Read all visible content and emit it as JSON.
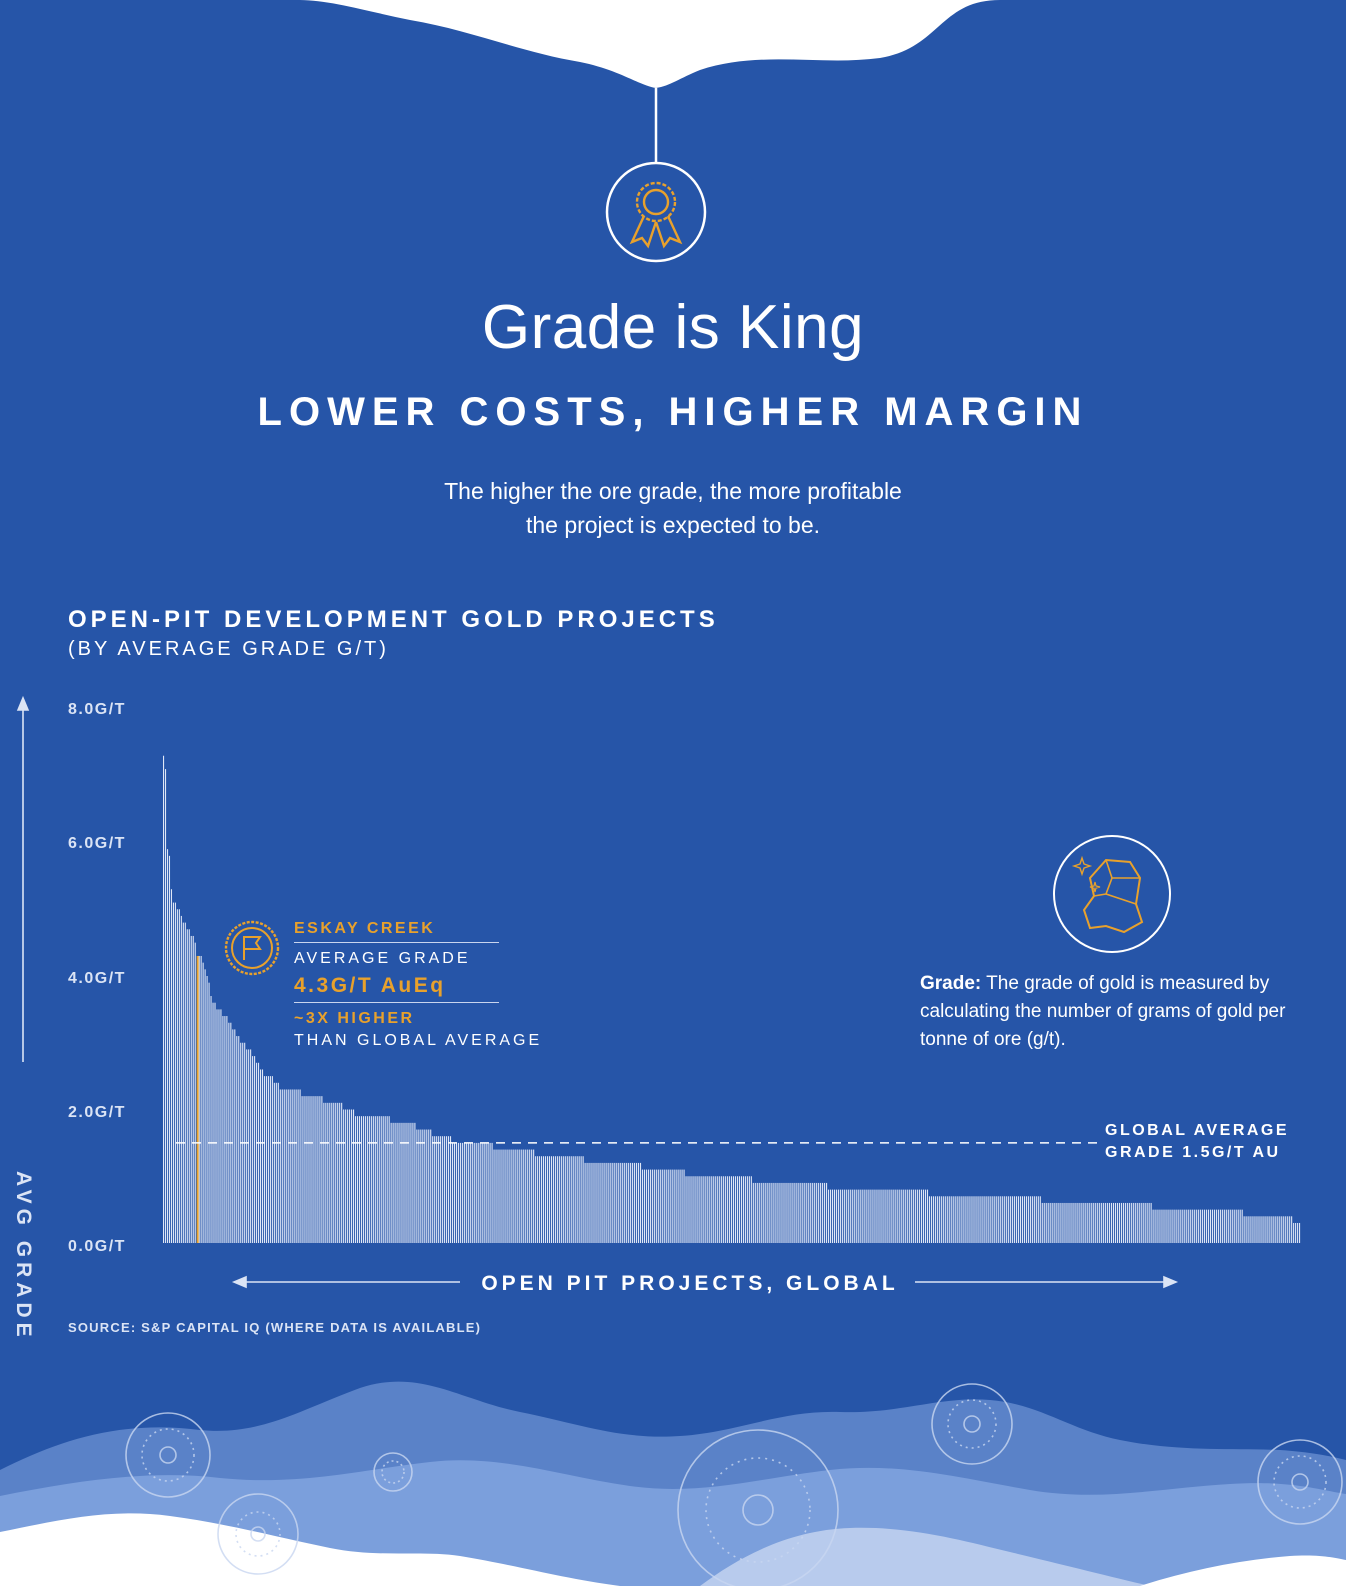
{
  "header": {
    "title": "Grade is King",
    "subtitle": "LOWER COSTS, HIGHER MARGIN",
    "intro_line1": "The higher the ore grade, the more profitable",
    "intro_line2": "the project is expected to be."
  },
  "icons": {
    "top": "award-ribbon-icon",
    "annotation": "flag-badge-icon",
    "definition": "gold-nugget-icon"
  },
  "colors": {
    "background": "#2655a8",
    "bars": "#dfe7f7",
    "highlight": "#e8a12c",
    "text": "#ffffff"
  },
  "annotation": {
    "name": "ESKAY CREEK",
    "label": "AVERAGE GRADE",
    "value": "4.3G/T AuEq",
    "multiple": "~3X HIGHER",
    "comparison": "THAN GLOBAL AVERAGE"
  },
  "definition": {
    "term": "Grade:",
    "text": " The grade of gold is measured by calculating the number of grams of gold per tonne of ore (g/t)."
  },
  "reference_line": {
    "label_line1": "GLOBAL AVERAGE",
    "label_line2": "GRADE 1.5G/T AU"
  },
  "source": "SOURCE: S&P CAPITAL IQ (WHERE DATA IS AVAILABLE)",
  "chart_data": {
    "type": "bar",
    "title": "OPEN-PIT DEVELOPMENT GOLD PROJECTS",
    "subtitle": "(BY AVERAGE GRADE G/T)",
    "xlabel": "OPEN PIT PROJECTS, GLOBAL",
    "ylabel": "AVG GRADE",
    "yticks": [
      "0.0G/T",
      "2.0G/T",
      "4.0G/T",
      "6.0G/T",
      "8.0G/T"
    ],
    "ylim": [
      0,
      8
    ],
    "grid": false,
    "highlight_index": 17,
    "reference_value": 1.5,
    "values": [
      7.3,
      7.1,
      5.9,
      5.8,
      5.3,
      5.1,
      5.1,
      5.0,
      5.0,
      4.9,
      4.8,
      4.8,
      4.7,
      4.7,
      4.6,
      4.6,
      4.5,
      4.3,
      4.3,
      4.3,
      4.2,
      4.1,
      4.0,
      3.9,
      3.7,
      3.6,
      3.6,
      3.5,
      3.5,
      3.5,
      3.4,
      3.4,
      3.4,
      3.3,
      3.3,
      3.2,
      3.2,
      3.1,
      3.1,
      3.0,
      3.0,
      3.0,
      2.9,
      2.9,
      2.9,
      2.8,
      2.8,
      2.7,
      2.7,
      2.6,
      2.6,
      2.5,
      2.5,
      2.5,
      2.5,
      2.5,
      2.4,
      2.4,
      2.4,
      2.3,
      2.3,
      2.3,
      2.3,
      2.3,
      2.3,
      2.3,
      2.3,
      2.3,
      2.3,
      2.3,
      2.2,
      2.2,
      2.2,
      2.2,
      2.2,
      2.2,
      2.2,
      2.2,
      2.2,
      2.2,
      2.2,
      2.1,
      2.1,
      2.1,
      2.1,
      2.1,
      2.1,
      2.1,
      2.1,
      2.1,
      2.1,
      2.0,
      2.0,
      2.0,
      2.0,
      2.0,
      2.0,
      1.9,
      1.9,
      1.9,
      1.9,
      1.9,
      1.9,
      1.9,
      1.9,
      1.9,
      1.9,
      1.9,
      1.9,
      1.9,
      1.9,
      1.9,
      1.9,
      1.9,
      1.9,
      1.8,
      1.8,
      1.8,
      1.8,
      1.8,
      1.8,
      1.8,
      1.8,
      1.8,
      1.8,
      1.8,
      1.8,
      1.8,
      1.7,
      1.7,
      1.7,
      1.7,
      1.7,
      1.7,
      1.7,
      1.7,
      1.6,
      1.6,
      1.6,
      1.6,
      1.6,
      1.6,
      1.6,
      1.6,
      1.6,
      1.6,
      1.5,
      1.5,
      1.5,
      1.5,
      1.5,
      1.5,
      1.5,
      1.5,
      1.5,
      1.5,
      1.5,
      1.5,
      1.5,
      1.5,
      1.5,
      1.5,
      1.5,
      1.5,
      1.5,
      1.5,
      1.5,
      1.4,
      1.4,
      1.4,
      1.4,
      1.4,
      1.4,
      1.4,
      1.4,
      1.4,
      1.4,
      1.4,
      1.4,
      1.4,
      1.4,
      1.4,
      1.4,
      1.4,
      1.4,
      1.4,
      1.4,
      1.4,
      1.3,
      1.3,
      1.3,
      1.3,
      1.3,
      1.3,
      1.3,
      1.3,
      1.3,
      1.3,
      1.3,
      1.3,
      1.3,
      1.3,
      1.3,
      1.3,
      1.3,
      1.3,
      1.3,
      1.3,
      1.3,
      1.3,
      1.3,
      1.3,
      1.3,
      1.2,
      1.2,
      1.2,
      1.2,
      1.2,
      1.2,
      1.2,
      1.2,
      1.2,
      1.2,
      1.2,
      1.2,
      1.2,
      1.2,
      1.2,
      1.2,
      1.2,
      1.2,
      1.2,
      1.2,
      1.2,
      1.2,
      1.2,
      1.2,
      1.2,
      1.2,
      1.2,
      1.2,
      1.2,
      1.1,
      1.1,
      1.1,
      1.1,
      1.1,
      1.1,
      1.1,
      1.1,
      1.1,
      1.1,
      1.1,
      1.1,
      1.1,
      1.1,
      1.1,
      1.1,
      1.1,
      1.1,
      1.1,
      1.1,
      1.1,
      1.1,
      1.0,
      1.0,
      1.0,
      1.0,
      1.0,
      1.0,
      1.0,
      1.0,
      1.0,
      1.0,
      1.0,
      1.0,
      1.0,
      1.0,
      1.0,
      1.0,
      1.0,
      1.0,
      1.0,
      1.0,
      1.0,
      1.0,
      1.0,
      1.0,
      1.0,
      1.0,
      1.0,
      1.0,
      1.0,
      1.0,
      1.0,
      1.0,
      1.0,
      1.0,
      0.9,
      0.9,
      0.9,
      0.9,
      0.9,
      0.9,
      0.9,
      0.9,
      0.9,
      0.9,
      0.9,
      0.9,
      0.9,
      0.9,
      0.9,
      0.9,
      0.9,
      0.9,
      0.9,
      0.9,
      0.9,
      0.9,
      0.9,
      0.9,
      0.9,
      0.9,
      0.9,
      0.9,
      0.9,
      0.9,
      0.9,
      0.9,
      0.9,
      0.9,
      0.9,
      0.9,
      0.9,
      0.9,
      0.8,
      0.8,
      0.8,
      0.8,
      0.8,
      0.8,
      0.8,
      0.8,
      0.8,
      0.8,
      0.8,
      0.8,
      0.8,
      0.8,
      0.8,
      0.8,
      0.8,
      0.8,
      0.8,
      0.8,
      0.8,
      0.8,
      0.8,
      0.8,
      0.8,
      0.8,
      0.8,
      0.8,
      0.8,
      0.8,
      0.8,
      0.8,
      0.8,
      0.8,
      0.8,
      0.8,
      0.8,
      0.8,
      0.8,
      0.8,
      0.8,
      0.8,
      0.8,
      0.8,
      0.8,
      0.8,
      0.8,
      0.8,
      0.8,
      0.8,
      0.8,
      0.7,
      0.7,
      0.7,
      0.7,
      0.7,
      0.7,
      0.7,
      0.7,
      0.7,
      0.7,
      0.7,
      0.7,
      0.7,
      0.7,
      0.7,
      0.7,
      0.7,
      0.7,
      0.7,
      0.7,
      0.7,
      0.7,
      0.7,
      0.7,
      0.7,
      0.7,
      0.7,
      0.7,
      0.7,
      0.7,
      0.7,
      0.7,
      0.7,
      0.7,
      0.7,
      0.7,
      0.7,
      0.7,
      0.7,
      0.7,
      0.7,
      0.7,
      0.7,
      0.7,
      0.7,
      0.7,
      0.7,
      0.7,
      0.7,
      0.7,
      0.7,
      0.7,
      0.7,
      0.7,
      0.7,
      0.7,
      0.7,
      0.6,
      0.6,
      0.6,
      0.6,
      0.6,
      0.6,
      0.6,
      0.6,
      0.6,
      0.6,
      0.6,
      0.6,
      0.6,
      0.6,
      0.6,
      0.6,
      0.6,
      0.6,
      0.6,
      0.6,
      0.6,
      0.6,
      0.6,
      0.6,
      0.6,
      0.6,
      0.6,
      0.6,
      0.6,
      0.6,
      0.6,
      0.6,
      0.6,
      0.6,
      0.6,
      0.6,
      0.6,
      0.6,
      0.6,
      0.6,
      0.6,
      0.6,
      0.6,
      0.6,
      0.6,
      0.6,
      0.6,
      0.6,
      0.6,
      0.6,
      0.6,
      0.6,
      0.6,
      0.6,
      0.6,
      0.6,
      0.5,
      0.5,
      0.5,
      0.5,
      0.5,
      0.5,
      0.5,
      0.5,
      0.5,
      0.5,
      0.5,
      0.5,
      0.5,
      0.5,
      0.5,
      0.5,
      0.5,
      0.5,
      0.5,
      0.5,
      0.5,
      0.5,
      0.5,
      0.5,
      0.5,
      0.5,
      0.5,
      0.5,
      0.5,
      0.5,
      0.5,
      0.5,
      0.5,
      0.5,
      0.5,
      0.5,
      0.5,
      0.5,
      0.5,
      0.5,
      0.5,
      0.5,
      0.5,
      0.5,
      0.5,
      0.5,
      0.4,
      0.4,
      0.4,
      0.4,
      0.4,
      0.4,
      0.4,
      0.4,
      0.4,
      0.4,
      0.4,
      0.4,
      0.4,
      0.4,
      0.4,
      0.4,
      0.4,
      0.4,
      0.4,
      0.4,
      0.4,
      0.4,
      0.4,
      0.4,
      0.4,
      0.3,
      0.3,
      0.3,
      0.3
    ]
  }
}
